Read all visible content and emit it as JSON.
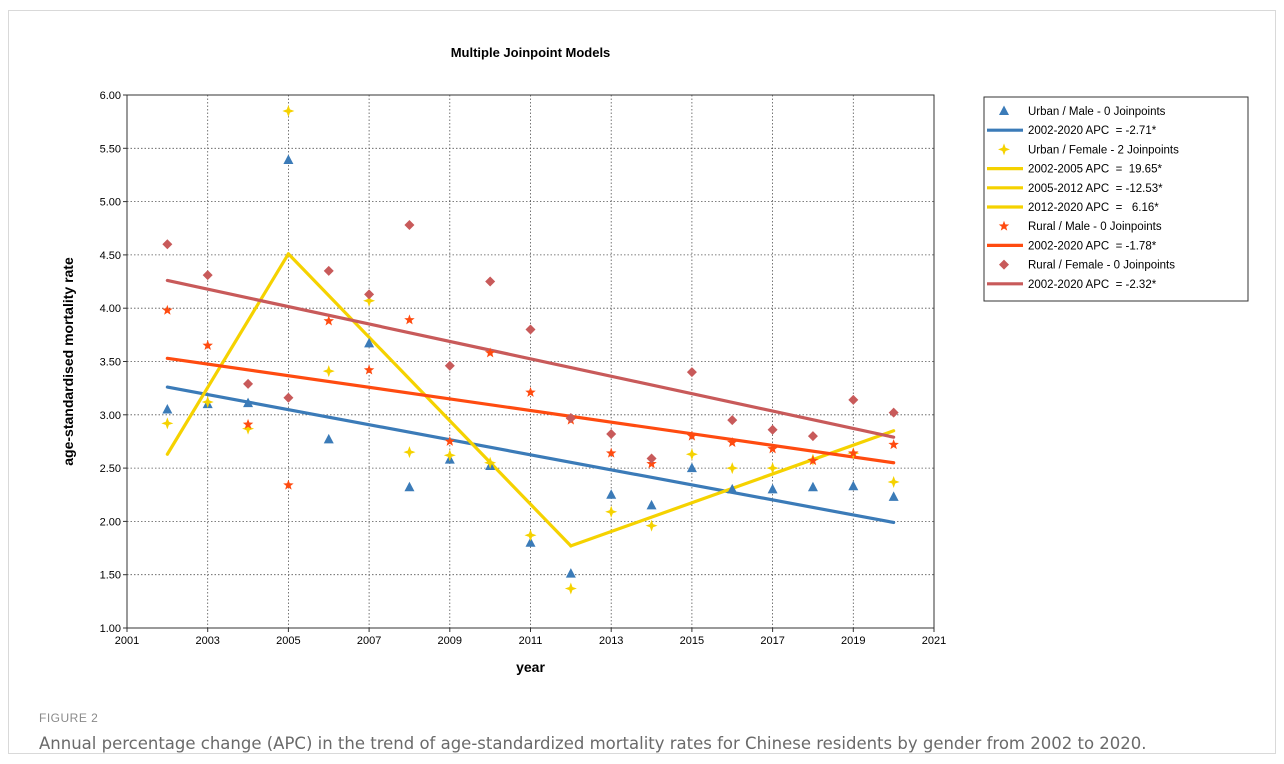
{
  "chart_data": {
    "type": "scatter",
    "title": "Multiple Joinpoint Models",
    "xlabel": "year",
    "ylabel": "age-standardised mortality rate",
    "xlim": [
      2001,
      2021
    ],
    "ylim": [
      1.0,
      6.0
    ],
    "x_ticks": [
      "2001",
      "2003",
      "2005",
      "2007",
      "2009",
      "2011",
      "2013",
      "2015",
      "2017",
      "2019",
      "2021"
    ],
    "y_ticks": [
      "1.00",
      "1.50",
      "2.00",
      "2.50",
      "3.00",
      "3.50",
      "4.00",
      "4.50",
      "5.00",
      "5.50",
      "6.00"
    ],
    "grid": true,
    "legend_position": "right",
    "series": [
      {
        "name": "Urban / Male - 0 Joinpoints",
        "marker": "triangle",
        "color": "#3b7bb8",
        "x": [
          2002,
          2003,
          2004,
          2005,
          2006,
          2007,
          2008,
          2009,
          2010,
          2011,
          2012,
          2013,
          2014,
          2015,
          2016,
          2017,
          2018,
          2019,
          2020
        ],
        "y": [
          3.05,
          3.1,
          3.11,
          5.39,
          2.77,
          3.67,
          2.32,
          2.58,
          2.52,
          1.8,
          1.51,
          2.25,
          2.15,
          2.5,
          2.3,
          2.3,
          2.32,
          2.33,
          2.23
        ],
        "fit": [
          {
            "label": "2002-2020 APC  = -2.71*",
            "x": [
              2002,
              2020
            ],
            "y": [
              3.26,
              1.99
            ]
          }
        ]
      },
      {
        "name": "Urban / Female - 2 Joinpoints",
        "marker": "plus",
        "color": "#f5d200",
        "x": [
          2002,
          2003,
          2004,
          2005,
          2006,
          2007,
          2008,
          2009,
          2010,
          2011,
          2012,
          2013,
          2014,
          2015,
          2016,
          2017,
          2018,
          2019,
          2020
        ],
        "y": [
          2.92,
          3.12,
          2.87,
          5.85,
          3.41,
          4.07,
          2.65,
          2.62,
          2.55,
          1.87,
          1.37,
          2.09,
          1.96,
          2.63,
          2.5,
          2.5,
          2.58,
          2.64,
          2.37
        ],
        "fit": [
          {
            "label": "2002-2005 APC  =  19.65*",
            "x": [
              2002,
              2005
            ],
            "y": [
              2.63,
              4.51
            ]
          },
          {
            "label": "2005-2012 APC  = -12.53*",
            "x": [
              2005,
              2012
            ],
            "y": [
              4.51,
              1.77
            ]
          },
          {
            "label": "2012-2020 APC  =   6.16*",
            "x": [
              2012,
              2020
            ],
            "y": [
              1.77,
              2.85
            ]
          }
        ]
      },
      {
        "name": "Rural / Male - 0 Joinpoints",
        "marker": "star",
        "color": "#ff4b10",
        "x": [
          2002,
          2003,
          2004,
          2005,
          2006,
          2007,
          2008,
          2009,
          2010,
          2011,
          2012,
          2013,
          2014,
          2015,
          2016,
          2017,
          2018,
          2019,
          2020
        ],
        "y": [
          3.98,
          3.65,
          2.91,
          2.34,
          3.88,
          3.42,
          3.89,
          2.75,
          3.58,
          3.21,
          2.95,
          2.64,
          2.54,
          2.8,
          2.74,
          2.68,
          2.57,
          2.64,
          2.72
        ],
        "fit": [
          {
            "label": "2002-2020 APC  = -1.78*",
            "x": [
              2002,
              2020
            ],
            "y": [
              3.53,
              2.55
            ]
          }
        ]
      },
      {
        "name": "Rural / Female - 0 Joinpoints",
        "marker": "diamond",
        "color": "#c85a5a",
        "x": [
          2002,
          2003,
          2004,
          2005,
          2006,
          2007,
          2008,
          2009,
          2010,
          2011,
          2012,
          2013,
          2014,
          2015,
          2016,
          2017,
          2018,
          2019,
          2020
        ],
        "y": [
          4.6,
          4.31,
          3.29,
          3.16,
          4.35,
          4.13,
          4.78,
          3.46,
          4.25,
          3.8,
          2.97,
          2.82,
          2.59,
          3.4,
          2.95,
          2.86,
          2.8,
          3.14,
          3.02
        ],
        "fit": [
          {
            "label": "2002-2020 APC  = -2.32*",
            "x": [
              2002,
              2020
            ],
            "y": [
              4.26,
              2.79
            ]
          }
        ]
      }
    ]
  },
  "figure": {
    "label": "FIGURE 2",
    "caption": "Annual percentage change (APC) in the trend of age-standardized mortality rates for Chinese residents by gender from 2002 to 2020."
  }
}
